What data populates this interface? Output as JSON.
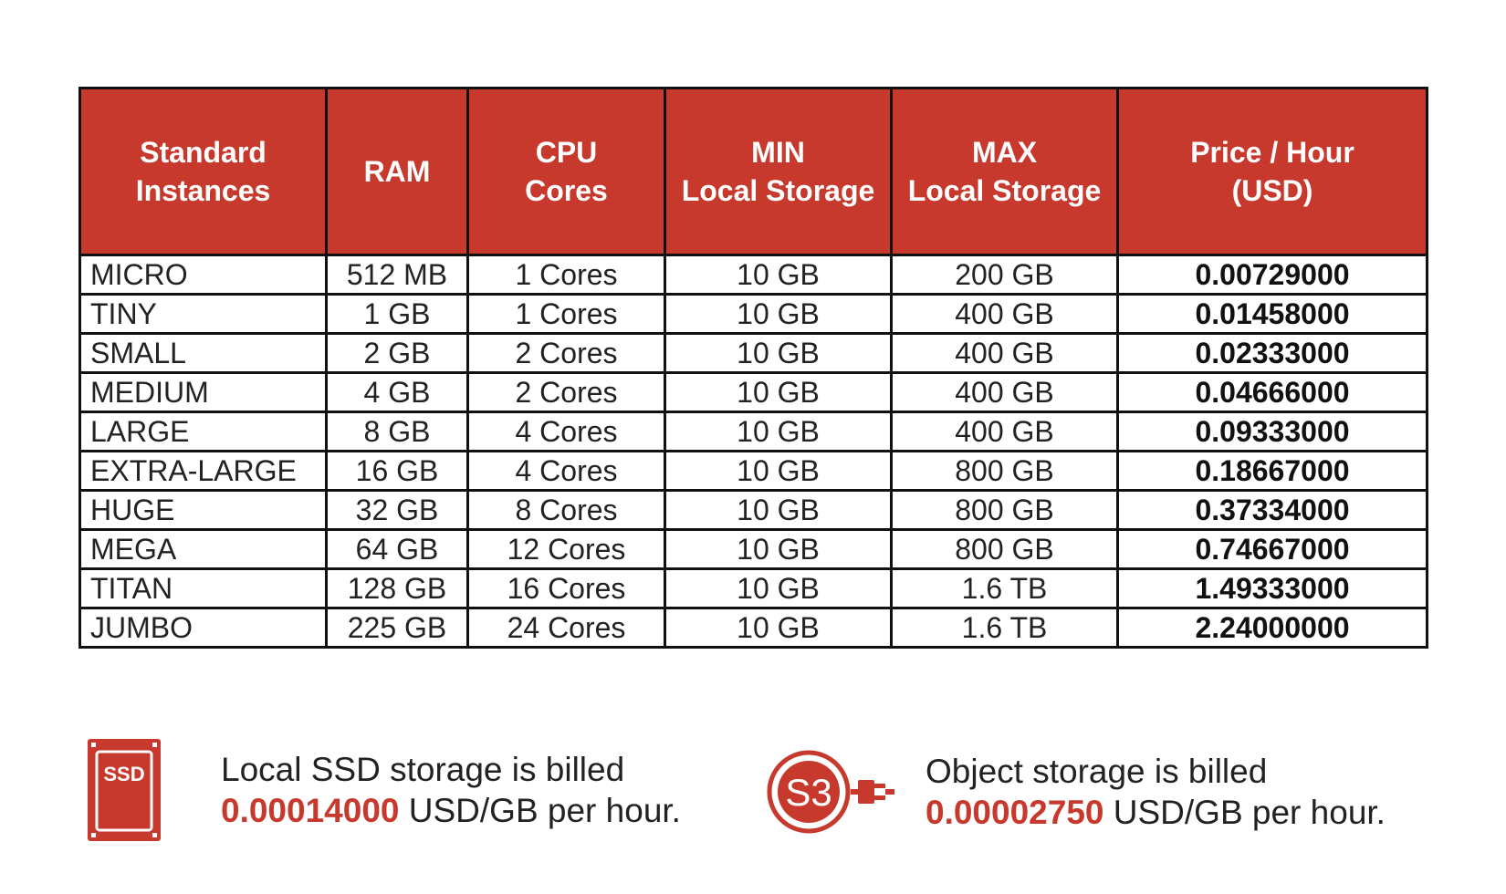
{
  "colors": {
    "accent": "#c8392d",
    "border": "#111111",
    "text": "#222222",
    "header_text": "#ffffff"
  },
  "table": {
    "headers": [
      [
        "Standard",
        "Instances"
      ],
      [
        "RAM"
      ],
      [
        "CPU",
        "Cores"
      ],
      [
        "MIN",
        "Local Storage"
      ],
      [
        "MAX",
        "Local Storage"
      ],
      [
        "Price / Hour",
        "(USD)"
      ]
    ],
    "rows": [
      [
        "MICRO",
        "512 MB",
        "1 Cores",
        "10 GB",
        "200 GB",
        "0.00729000"
      ],
      [
        "TINY",
        "1 GB",
        "1 Cores",
        "10 GB",
        "400 GB",
        "0.01458000"
      ],
      [
        "SMALL",
        "2 GB",
        "2 Cores",
        "10 GB",
        "400 GB",
        "0.02333000"
      ],
      [
        "MEDIUM",
        "4 GB",
        "2 Cores",
        "10 GB",
        "400 GB",
        "0.04666000"
      ],
      [
        "LARGE",
        "8 GB",
        "4 Cores",
        "10 GB",
        "400 GB",
        "0.09333000"
      ],
      [
        "EXTRA-LARGE",
        "16 GB",
        "4 Cores",
        "10 GB",
        "800 GB",
        "0.18667000"
      ],
      [
        "HUGE",
        "32 GB",
        "8 Cores",
        "10 GB",
        "800 GB",
        "0.37334000"
      ],
      [
        "MEGA",
        "64 GB",
        "12 Cores",
        "10 GB",
        "800 GB",
        "0.74667000"
      ],
      [
        "TITAN",
        "128 GB",
        "16 Cores",
        "10 GB",
        "1.6 TB",
        "1.49333000"
      ],
      [
        "JUMBO",
        "225 GB",
        "24 Cores",
        "10 GB",
        "1.6 TB",
        "2.24000000"
      ]
    ]
  },
  "notes": {
    "ssd": {
      "icon": "ssd-drive-icon",
      "icon_label": "SSD",
      "line1": "Local SSD storage is billed",
      "price": "0.00014000",
      "suffix": " USD/GB per hour."
    },
    "s3": {
      "icon": "s3-plug-icon",
      "icon_label": "S3",
      "line1": "Object storage is billed",
      "price": "0.00002750",
      "suffix": " USD/GB per hour."
    }
  }
}
